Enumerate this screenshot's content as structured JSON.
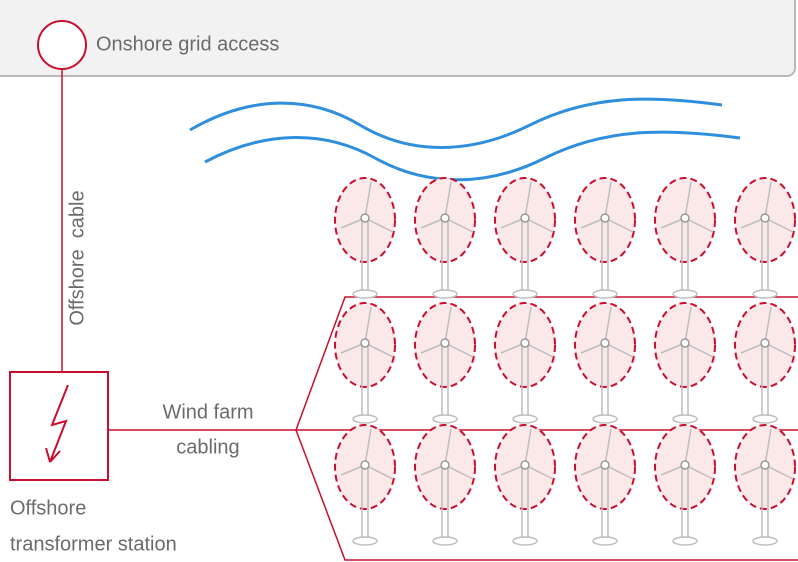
{
  "header": {
    "label": "Onshore grid access"
  },
  "labels": {
    "cable": "Offshore  cable",
    "farm_cabling": [
      "Wind farm",
      "cabling"
    ],
    "station": [
      "Offshore",
      "transformer station"
    ]
  }
}
